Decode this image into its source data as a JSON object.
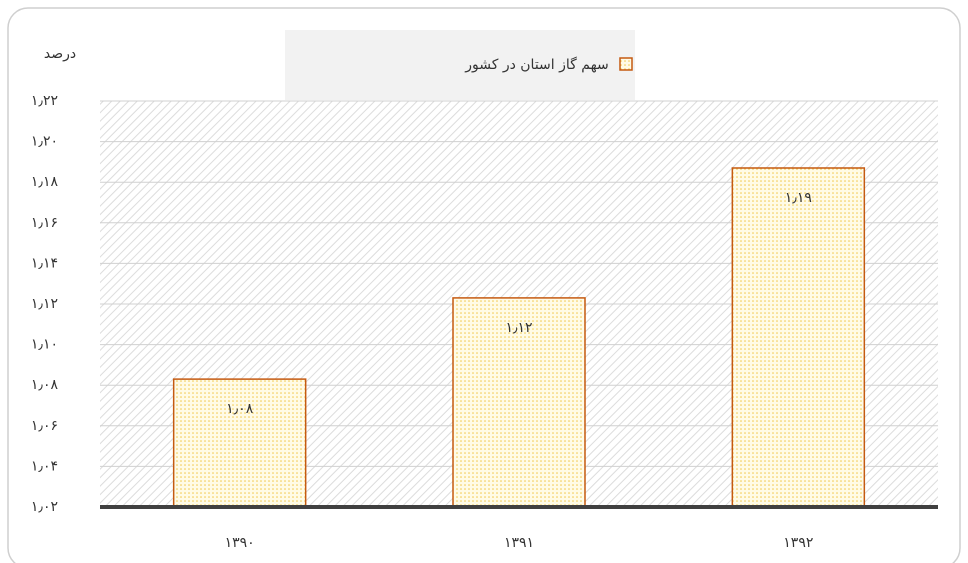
{
  "chart_data": {
    "type": "bar",
    "y_label": "درصد",
    "categories": [
      "۱۳۹۰",
      "۱۳۹۱",
      "۱۳۹۲"
    ],
    "series": [
      {
        "name": "سهم گاز استان در کشور",
        "color": "#c55a11",
        "values": [
          1.083,
          1.123,
          1.187
        ],
        "value_labels": [
          "۱٫۰۸",
          "۱٫۱۲",
          "۱٫۱۹"
        ]
      }
    ],
    "ylim": [
      1.02,
      1.22
    ],
    "yticks": [
      {
        "value": 1.02,
        "label": "۱٫۰۲"
      },
      {
        "value": 1.04,
        "label": "۱٫۰۴"
      },
      {
        "value": 1.06,
        "label": "۱٫۰۶"
      },
      {
        "value": 1.08,
        "label": "۱٫۰۸"
      },
      {
        "value": 1.1,
        "label": "۱٫۱۰"
      },
      {
        "value": 1.12,
        "label": "۱٫۱۲"
      },
      {
        "value": 1.14,
        "label": "۱٫۱۴"
      },
      {
        "value": 1.16,
        "label": "۱٫۱۶"
      },
      {
        "value": 1.18,
        "label": "۱٫۱۸"
      },
      {
        "value": 1.2,
        "label": "۱٫۲۰"
      },
      {
        "value": 1.22,
        "label": "۱٫۲۲"
      }
    ],
    "grid": true,
    "legend": "top"
  }
}
